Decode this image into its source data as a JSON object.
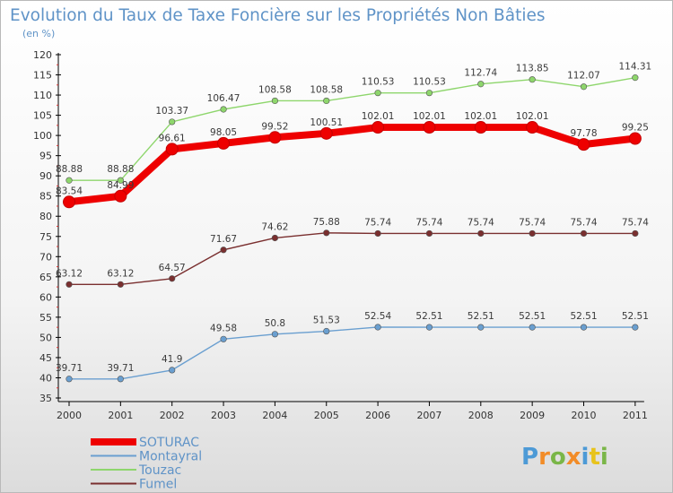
{
  "chart_data": {
    "type": "line",
    "title": "Evolution du Taux de Taxe Foncière sur les Propriétés Non Bâties",
    "ylabel": "(en %)",
    "xlabel": "",
    "ylim": [
      35,
      120
    ],
    "ytick_step": 5,
    "grid": false,
    "legend_position": "bottom-left",
    "categories": [
      "2000",
      "2001",
      "2002",
      "2003",
      "2004",
      "2005",
      "2006",
      "2007",
      "2008",
      "2009",
      "2010",
      "2011"
    ],
    "series": [
      {
        "name": "Touzac",
        "color": "#8ed66c",
        "values": [
          88.88,
          88.88,
          103.37,
          106.47,
          108.58,
          108.58,
          110.53,
          110.53,
          112.74,
          113.85,
          112.07,
          114.31
        ],
        "labels": [
          "88.88",
          "88.88",
          "103.37",
          "106.47",
          "108.58",
          "108.58",
          "110.53",
          "110.53",
          "112.74",
          "113.85",
          "112.07",
          "114.31"
        ]
      },
      {
        "name": "Fumel",
        "color": "#7a2f2f",
        "values": [
          63.12,
          63.12,
          64.57,
          71.67,
          74.62,
          75.88,
          75.74,
          75.74,
          75.74,
          75.74,
          75.74,
          75.74
        ],
        "labels": [
          "63.12",
          "63.12",
          "64.57",
          "71.67",
          "74.62",
          "75.88",
          "75.74",
          "75.74",
          "75.74",
          "75.74",
          "75.74",
          "75.74"
        ]
      },
      {
        "name": "Montayral",
        "color": "#6a9fd0",
        "values": [
          39.71,
          39.71,
          41.9,
          49.58,
          50.8,
          51.53,
          52.54,
          52.51,
          52.51,
          52.51,
          52.51,
          52.51
        ],
        "labels": [
          "39.71",
          "39.71",
          "41.9",
          "49.58",
          "50.8",
          "51.53",
          "52.54",
          "52.51",
          "52.51",
          "52.51",
          "52.51",
          "52.51"
        ]
      },
      {
        "name": "SOTURAC",
        "color": "#ee0000",
        "values": [
          83.54,
          84.99,
          96.61,
          98.05,
          99.52,
          100.51,
          102.01,
          102.01,
          102.01,
          102.01,
          97.78,
          99.25
        ],
        "labels": [
          "83.54",
          "84.99",
          "96.61",
          "98.05",
          "99.52",
          "100.51",
          "102.01",
          "102.01",
          "102.01",
          "102.01",
          "97.78",
          "99.25"
        ]
      }
    ],
    "legend": [
      "SOTURAC",
      "Montayral",
      "Touzac",
      "Fumel"
    ]
  },
  "logo": {
    "letters": [
      "P",
      "r",
      "o",
      "x",
      "i",
      "t",
      "i"
    ],
    "colors": [
      "#4d9ad6",
      "#f28c28",
      "#7ab648",
      "#f28c28",
      "#4d9ad6",
      "#e8c31b",
      "#7ab648"
    ]
  }
}
